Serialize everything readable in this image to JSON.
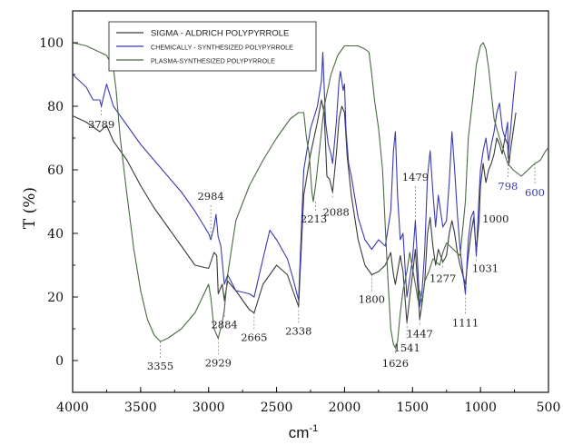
{
  "chart_data": {
    "type": "line",
    "xlabel": "cm",
    "xlabel_sup": "-1",
    "ylabel": "T (%)",
    "xlim": [
      4000,
      500
    ],
    "ylim": [
      -10,
      110
    ],
    "x_ticks": [
      4000,
      3500,
      3000,
      2500,
      2000,
      1500,
      1000,
      500
    ],
    "y_ticks": [
      0,
      20,
      40,
      60,
      80,
      100
    ],
    "grid": false,
    "legend_position": "top-center",
    "series": [
      {
        "name": "SIGMA - ALDRICH POLYPYRROLE",
        "color": "#3a3a3a",
        "points": [
          [
            4000,
            77
          ],
          [
            3900,
            75
          ],
          [
            3800,
            72
          ],
          [
            3750,
            74
          ],
          [
            3700,
            69
          ],
          [
            3600,
            63
          ],
          [
            3500,
            55
          ],
          [
            3400,
            48
          ],
          [
            3300,
            42
          ],
          [
            3200,
            36
          ],
          [
            3100,
            30
          ],
          [
            3000,
            29
          ],
          [
            2960,
            34
          ],
          [
            2940,
            33
          ],
          [
            2929,
            21
          ],
          [
            2900,
            24
          ],
          [
            2884,
            19
          ],
          [
            2860,
            25
          ],
          [
            2800,
            22
          ],
          [
            2700,
            16
          ],
          [
            2665,
            15
          ],
          [
            2600,
            24
          ],
          [
            2500,
            30
          ],
          [
            2420,
            27
          ],
          [
            2380,
            22
          ],
          [
            2338,
            17
          ],
          [
            2300,
            52
          ],
          [
            2250,
            65
          ],
          [
            2200,
            75
          ],
          [
            2170,
            82
          ],
          [
            2150,
            78
          ],
          [
            2130,
            58
          ],
          [
            2110,
            57
          ],
          [
            2088,
            53
          ],
          [
            2060,
            65
          ],
          [
            2040,
            76
          ],
          [
            2020,
            80
          ],
          [
            2000,
            78
          ],
          [
            1980,
            64
          ],
          [
            1950,
            52
          ],
          [
            1900,
            38
          ],
          [
            1850,
            30
          ],
          [
            1800,
            27
          ],
          [
            1750,
            28
          ],
          [
            1700,
            30
          ],
          [
            1660,
            34
          ],
          [
            1640,
            27
          ],
          [
            1626,
            24
          ],
          [
            1610,
            28
          ],
          [
            1590,
            33
          ],
          [
            1570,
            28
          ],
          [
            1541,
            12
          ],
          [
            1520,
            20
          ],
          [
            1500,
            27
          ],
          [
            1479,
            35
          ],
          [
            1460,
            22
          ],
          [
            1447,
            13
          ],
          [
            1430,
            18
          ],
          [
            1410,
            25
          ],
          [
            1390,
            40
          ],
          [
            1370,
            45
          ],
          [
            1350,
            36
          ],
          [
            1330,
            30
          ],
          [
            1310,
            35
          ],
          [
            1277,
            31
          ],
          [
            1250,
            33
          ],
          [
            1230,
            40
          ],
          [
            1210,
            44
          ],
          [
            1190,
            40
          ],
          [
            1170,
            34
          ],
          [
            1150,
            30
          ],
          [
            1111,
            24
          ],
          [
            1090,
            33
          ],
          [
            1070,
            40
          ],
          [
            1050,
            45
          ],
          [
            1031,
            34
          ],
          [
            1010,
            44
          ],
          [
            1000,
            55
          ],
          [
            980,
            62
          ],
          [
            960,
            56
          ],
          [
            940,
            60
          ],
          [
            920,
            62
          ],
          [
            900,
            65
          ],
          [
            880,
            70
          ],
          [
            860,
            68
          ],
          [
            840,
            65
          ],
          [
            820,
            70
          ],
          [
            800,
            68
          ],
          [
            790,
            62
          ],
          [
            780,
            66
          ],
          [
            760,
            72
          ],
          [
            740,
            78
          ]
        ]
      },
      {
        "name": "CHEMICALLY - SYNTHESIZED POLYPYRROLE",
        "color": "#3a3ab0",
        "points": [
          [
            4000,
            90
          ],
          [
            3900,
            86
          ],
          [
            3850,
            82
          ],
          [
            3800,
            82
          ],
          [
            3789,
            80
          ],
          [
            3750,
            87
          ],
          [
            3700,
            80
          ],
          [
            3600,
            74
          ],
          [
            3500,
            68
          ],
          [
            3400,
            63
          ],
          [
            3300,
            58
          ],
          [
            3200,
            53
          ],
          [
            3100,
            47
          ],
          [
            3000,
            40
          ],
          [
            2984,
            38
          ],
          [
            2960,
            42
          ],
          [
            2945,
            46
          ],
          [
            2930,
            39
          ],
          [
            2910,
            36
          ],
          [
            2884,
            24
          ],
          [
            2860,
            27
          ],
          [
            2800,
            22
          ],
          [
            2700,
            21
          ],
          [
            2665,
            20
          ],
          [
            2600,
            32
          ],
          [
            2550,
            41
          ],
          [
            2500,
            38
          ],
          [
            2420,
            32
          ],
          [
            2380,
            26
          ],
          [
            2338,
            19
          ],
          [
            2300,
            60
          ],
          [
            2250,
            73
          ],
          [
            2200,
            80
          ],
          [
            2170,
            88
          ],
          [
            2160,
            97
          ],
          [
            2140,
            75
          ],
          [
            2120,
            68
          ],
          [
            2100,
            65
          ],
          [
            2088,
            62
          ],
          [
            2060,
            75
          ],
          [
            2040,
            88
          ],
          [
            2030,
            91
          ],
          [
            2010,
            85
          ],
          [
            2000,
            87
          ],
          [
            1990,
            73
          ],
          [
            1970,
            62
          ],
          [
            1950,
            58
          ],
          [
            1900,
            45
          ],
          [
            1850,
            38
          ],
          [
            1800,
            35
          ],
          [
            1750,
            38
          ],
          [
            1700,
            36
          ],
          [
            1660,
            47
          ],
          [
            1640,
            66
          ],
          [
            1626,
            72
          ],
          [
            1610,
            52
          ],
          [
            1590,
            38
          ],
          [
            1570,
            40
          ],
          [
            1541,
            20
          ],
          [
            1520,
            26
          ],
          [
            1500,
            32
          ],
          [
            1479,
            44
          ],
          [
            1460,
            28
          ],
          [
            1447,
            17
          ],
          [
            1430,
            22
          ],
          [
            1410,
            35
          ],
          [
            1390,
            58
          ],
          [
            1370,
            66
          ],
          [
            1350,
            53
          ],
          [
            1330,
            42
          ],
          [
            1310,
            52
          ],
          [
            1277,
            42
          ],
          [
            1250,
            44
          ],
          [
            1230,
            56
          ],
          [
            1210,
            72
          ],
          [
            1190,
            60
          ],
          [
            1170,
            46
          ],
          [
            1150,
            35
          ],
          [
            1111,
            21
          ],
          [
            1090,
            38
          ],
          [
            1070,
            45
          ],
          [
            1050,
            47
          ],
          [
            1031,
            33
          ],
          [
            1010,
            52
          ],
          [
            1000,
            60
          ],
          [
            980,
            66
          ],
          [
            960,
            70
          ],
          [
            940,
            63
          ],
          [
            920,
            68
          ],
          [
            900,
            72
          ],
          [
            880,
            78
          ],
          [
            860,
            81
          ],
          [
            840,
            73
          ],
          [
            820,
            70
          ],
          [
            800,
            75
          ],
          [
            798,
            64
          ],
          [
            780,
            72
          ],
          [
            760,
            82
          ],
          [
            740,
            91
          ]
        ]
      },
      {
        "name": "PLASMA-SYNTHESIZED POLYPYRROLE",
        "color": "#4a6a44",
        "points": [
          [
            4000,
            100
          ],
          [
            3900,
            99
          ],
          [
            3850,
            98
          ],
          [
            3800,
            97
          ],
          [
            3750,
            96
          ],
          [
            3700,
            92
          ],
          [
            3680,
            85
          ],
          [
            3650,
            70
          ],
          [
            3600,
            52
          ],
          [
            3550,
            35
          ],
          [
            3500,
            22
          ],
          [
            3450,
            13
          ],
          [
            3400,
            8
          ],
          [
            3355,
            6
          ],
          [
            3300,
            7
          ],
          [
            3200,
            10
          ],
          [
            3100,
            15
          ],
          [
            3000,
            24
          ],
          [
            2984,
            20
          ],
          [
            2960,
            10
          ],
          [
            2929,
            7
          ],
          [
            2900,
            12
          ],
          [
            2884,
            16
          ],
          [
            2860,
            27
          ],
          [
            2800,
            44
          ],
          [
            2700,
            55
          ],
          [
            2600,
            63
          ],
          [
            2500,
            70
          ],
          [
            2400,
            76
          ],
          [
            2338,
            78
          ],
          [
            2300,
            78
          ],
          [
            2280,
            70
          ],
          [
            2260,
            65
          ],
          [
            2240,
            53
          ],
          [
            2230,
            50
          ],
          [
            2213,
            55
          ],
          [
            2180,
            68
          ],
          [
            2150,
            80
          ],
          [
            2100,
            90
          ],
          [
            2050,
            96
          ],
          [
            2000,
            99
          ],
          [
            1950,
            99
          ],
          [
            1900,
            99
          ],
          [
            1850,
            98
          ],
          [
            1820,
            97
          ],
          [
            1800,
            90
          ],
          [
            1780,
            82
          ],
          [
            1750,
            73
          ],
          [
            1720,
            60
          ],
          [
            1700,
            42
          ],
          [
            1680,
            25
          ],
          [
            1660,
            10
          ],
          [
            1640,
            5
          ],
          [
            1626,
            4
          ],
          [
            1610,
            6
          ],
          [
            1590,
            15
          ],
          [
            1570,
            22
          ],
          [
            1541,
            28
          ],
          [
            1520,
            34
          ],
          [
            1500,
            29
          ],
          [
            1479,
            24
          ],
          [
            1460,
            19
          ],
          [
            1447,
            22
          ],
          [
            1430,
            18
          ],
          [
            1410,
            25
          ],
          [
            1380,
            28
          ],
          [
            1350,
            32
          ],
          [
            1300,
            30
          ],
          [
            1277,
            34
          ],
          [
            1250,
            37
          ],
          [
            1200,
            35
          ],
          [
            1150,
            33
          ],
          [
            1111,
            50
          ],
          [
            1090,
            70
          ],
          [
            1050,
            85
          ],
          [
            1031,
            93
          ],
          [
            1000,
            99
          ],
          [
            980,
            100
          ],
          [
            960,
            98
          ],
          [
            940,
            92
          ],
          [
            920,
            84
          ],
          [
            900,
            76
          ],
          [
            860,
            70
          ],
          [
            800,
            62
          ],
          [
            760,
            60
          ],
          [
            700,
            58
          ],
          [
            650,
            60
          ],
          [
            600,
            62
          ],
          [
            560,
            63
          ],
          [
            520,
            66
          ],
          [
            500,
            67
          ]
        ]
      }
    ],
    "annotations": [
      {
        "label": "3789",
        "x": 3789,
        "y": 80,
        "color": "#222"
      },
      {
        "label": "3355",
        "x": 3355,
        "y": 6,
        "color": "#222"
      },
      {
        "label": "2984",
        "x": 2984,
        "y": 38,
        "color": "#222"
      },
      {
        "label": "2929",
        "x": 2929,
        "y": 7,
        "color": "#222"
      },
      {
        "label": "2884",
        "x": 2884,
        "y": 19,
        "color": "#222"
      },
      {
        "label": "2665",
        "x": 2665,
        "y": 15,
        "color": "#222"
      },
      {
        "label": "2338",
        "x": 2338,
        "y": 17,
        "color": "#222"
      },
      {
        "label": "2213",
        "x": 2213,
        "y": 50,
        "color": "#222"
      },
      {
        "label": "2088",
        "x": 2088,
        "y": 53,
        "color": "#222"
      },
      {
        "label": "1800",
        "x": 1800,
        "y": 27,
        "color": "#222"
      },
      {
        "label": "1626",
        "x": 1626,
        "y": 4,
        "color": "#222"
      },
      {
        "label": "1541",
        "x": 1541,
        "y": 12,
        "color": "#222"
      },
      {
        "label": "1479",
        "x": 1479,
        "y": 44,
        "color": "#222"
      },
      {
        "label": "1447",
        "x": 1447,
        "y": 13,
        "color": "#222"
      },
      {
        "label": "1277",
        "x": 1277,
        "y": 31,
        "color": "#222"
      },
      {
        "label": "1111",
        "x": 1111,
        "y": 21,
        "color": "#222"
      },
      {
        "label": "1031",
        "x": 1031,
        "y": 33,
        "color": "#222"
      },
      {
        "label": "1000",
        "x": 1000,
        "y": 44,
        "color": "#222"
      },
      {
        "label": "798",
        "x": 798,
        "y": 64,
        "color": "#3a3ab0"
      },
      {
        "label": "600",
        "x": 600,
        "y": 62,
        "color": "#3a3ab0"
      }
    ]
  }
}
